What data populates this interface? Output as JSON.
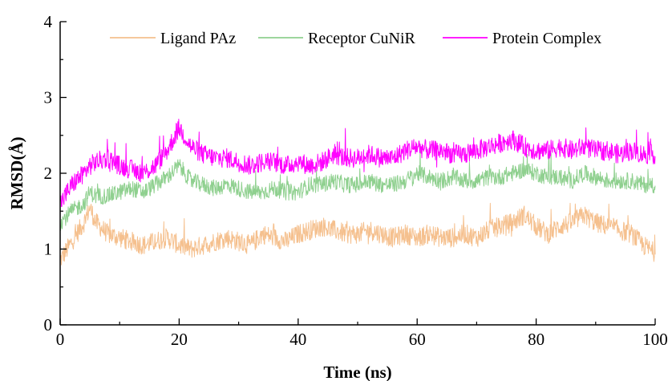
{
  "chart_data": {
    "type": "line",
    "xlabel": "Time (ns)",
    "ylabel": "RMSD(Å)",
    "xlim": [
      0,
      100
    ],
    "ylim": [
      0,
      4
    ],
    "xticks": [
      0,
      20,
      40,
      60,
      80,
      100
    ],
    "yticks": [
      0,
      1,
      2,
      3,
      4
    ],
    "xtick_labels": [
      "0",
      "20",
      "40",
      "60",
      "80",
      "100"
    ],
    "ytick_labels": [
      "0",
      "1",
      "2",
      "3",
      "4"
    ],
    "grid": false,
    "legend_position": "top",
    "series": [
      {
        "name": "Ligand PAz",
        "color": "#F5C08E",
        "x": [
          0,
          2,
          4,
          5,
          6,
          8,
          10,
          12,
          14,
          16,
          18,
          20,
          22,
          24,
          26,
          28,
          30,
          32,
          34,
          36,
          38,
          40,
          42,
          44,
          46,
          48,
          50,
          52,
          54,
          56,
          58,
          60,
          62,
          64,
          66,
          68,
          70,
          72,
          74,
          76,
          78,
          80,
          82,
          84,
          86,
          88,
          90,
          92,
          94,
          96,
          98,
          100
        ],
        "y": [
          0.85,
          1.1,
          1.35,
          1.55,
          1.35,
          1.2,
          1.15,
          1.1,
          1.05,
          1.1,
          1.15,
          1.05,
          1.0,
          1.05,
          1.1,
          1.15,
          1.1,
          1.05,
          1.2,
          1.15,
          1.1,
          1.2,
          1.25,
          1.3,
          1.25,
          1.2,
          1.2,
          1.25,
          1.2,
          1.15,
          1.2,
          1.15,
          1.2,
          1.15,
          1.15,
          1.2,
          1.15,
          1.25,
          1.3,
          1.35,
          1.45,
          1.3,
          1.2,
          1.3,
          1.35,
          1.45,
          1.35,
          1.3,
          1.25,
          1.2,
          1.05,
          0.95
        ]
      },
      {
        "name": "Receptor CuNiR",
        "color": "#8FD08F",
        "x": [
          0,
          2,
          4,
          5,
          6,
          8,
          10,
          12,
          14,
          16,
          18,
          20,
          22,
          24,
          26,
          28,
          30,
          32,
          34,
          36,
          38,
          40,
          42,
          44,
          46,
          48,
          50,
          52,
          54,
          56,
          58,
          60,
          62,
          64,
          66,
          68,
          70,
          72,
          74,
          76,
          78,
          80,
          82,
          84,
          86,
          88,
          90,
          92,
          94,
          96,
          98,
          100
        ],
        "y": [
          1.35,
          1.5,
          1.6,
          1.75,
          1.7,
          1.7,
          1.75,
          1.8,
          1.75,
          1.85,
          1.95,
          2.1,
          1.9,
          1.85,
          1.8,
          1.85,
          1.8,
          1.75,
          1.75,
          1.8,
          1.75,
          1.75,
          1.85,
          1.85,
          1.9,
          1.85,
          1.85,
          1.9,
          1.85,
          1.85,
          1.9,
          2.0,
          1.95,
          1.9,
          1.95,
          1.9,
          1.9,
          1.95,
          1.95,
          2.0,
          2.05,
          2.0,
          1.95,
          1.95,
          1.9,
          2.0,
          1.95,
          1.9,
          1.9,
          1.9,
          1.85,
          1.85
        ]
      },
      {
        "name": "Protein Complex",
        "color": "#FF00FF",
        "x": [
          0,
          2,
          4,
          5,
          6,
          8,
          10,
          12,
          14,
          16,
          18,
          20,
          22,
          24,
          26,
          28,
          30,
          32,
          34,
          36,
          38,
          40,
          42,
          44,
          46,
          48,
          50,
          52,
          54,
          56,
          58,
          60,
          62,
          64,
          66,
          68,
          70,
          72,
          74,
          76,
          78,
          80,
          82,
          84,
          86,
          88,
          90,
          92,
          94,
          96,
          98,
          100
        ],
        "y": [
          1.6,
          1.85,
          2.0,
          2.1,
          2.15,
          2.2,
          2.1,
          2.05,
          2.0,
          2.1,
          2.3,
          2.6,
          2.35,
          2.25,
          2.2,
          2.2,
          2.15,
          2.1,
          2.15,
          2.15,
          2.1,
          2.15,
          2.1,
          2.15,
          2.25,
          2.2,
          2.2,
          2.25,
          2.2,
          2.2,
          2.3,
          2.35,
          2.3,
          2.3,
          2.25,
          2.25,
          2.3,
          2.35,
          2.4,
          2.45,
          2.35,
          2.3,
          2.3,
          2.35,
          2.3,
          2.35,
          2.3,
          2.3,
          2.25,
          2.3,
          2.25,
          2.25
        ]
      }
    ]
  }
}
